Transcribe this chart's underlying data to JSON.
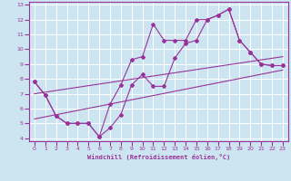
{
  "xlabel": "Windchill (Refroidissement éolien,°C)",
  "background_color": "#cce5f0",
  "grid_color": "#ffffff",
  "line_color": "#993399",
  "xlim": [
    -0.5,
    23.5
  ],
  "ylim": [
    3.8,
    13.2
  ],
  "xticks": [
    0,
    1,
    2,
    3,
    4,
    5,
    6,
    7,
    8,
    9,
    10,
    11,
    12,
    13,
    14,
    15,
    16,
    17,
    18,
    19,
    20,
    21,
    22,
    23
  ],
  "yticks": [
    4,
    5,
    6,
    7,
    8,
    9,
    10,
    11,
    12,
    13
  ],
  "line1_x": [
    0,
    1,
    2,
    3,
    4,
    5,
    6,
    7,
    8,
    9,
    10,
    11,
    12,
    13,
    14,
    15,
    16,
    17,
    18,
    19,
    20,
    21,
    22,
    23
  ],
  "line1_y": [
    7.8,
    6.9,
    5.5,
    5.0,
    5.0,
    5.0,
    4.1,
    4.7,
    5.6,
    7.6,
    8.3,
    7.5,
    7.5,
    9.4,
    10.4,
    10.6,
    12.0,
    12.3,
    12.7,
    10.6,
    9.8,
    9.0,
    8.9,
    8.9
  ],
  "line2_x": [
    0,
    1,
    2,
    3,
    4,
    5,
    6,
    7,
    8,
    9,
    10,
    11,
    12,
    13,
    14,
    15,
    16,
    17,
    18,
    19,
    20,
    21,
    22,
    23
  ],
  "line2_y": [
    7.8,
    6.9,
    5.5,
    5.0,
    5.0,
    5.0,
    4.1,
    6.3,
    7.6,
    9.3,
    9.5,
    11.7,
    10.6,
    10.6,
    10.6,
    12.0,
    12.0,
    12.3,
    12.7,
    10.6,
    9.8,
    9.0,
    8.9,
    8.9
  ],
  "line3_x": [
    0,
    23
  ],
  "line3_y": [
    5.3,
    8.6
  ],
  "line4_x": [
    0,
    23
  ],
  "line4_y": [
    7.0,
    9.5
  ]
}
